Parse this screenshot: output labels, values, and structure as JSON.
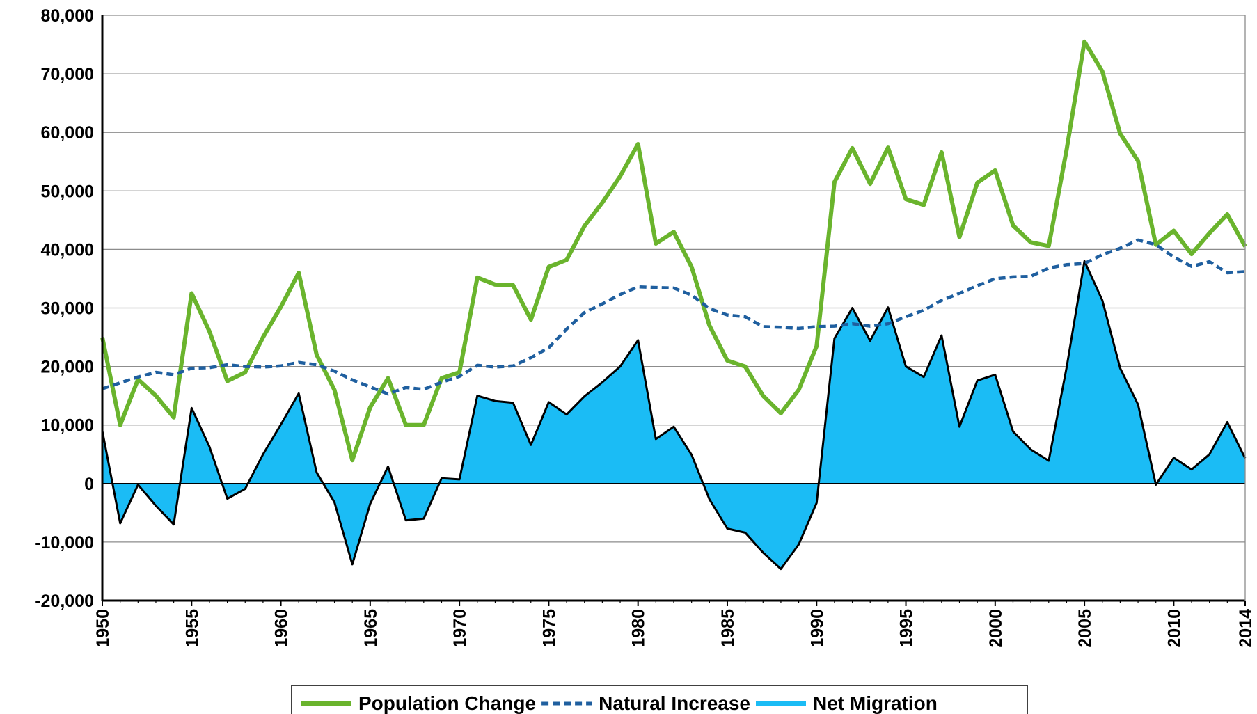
{
  "chart_data": {
    "type": "line",
    "x": [
      1950,
      1951,
      1952,
      1953,
      1954,
      1955,
      1956,
      1957,
      1958,
      1959,
      1960,
      1961,
      1962,
      1963,
      1964,
      1965,
      1966,
      1967,
      1968,
      1969,
      1970,
      1971,
      1972,
      1973,
      1974,
      1975,
      1976,
      1977,
      1978,
      1979,
      1980,
      1981,
      1982,
      1983,
      1984,
      1985,
      1986,
      1987,
      1988,
      1989,
      1990,
      1991,
      1992,
      1993,
      1994,
      1995,
      1996,
      1997,
      1998,
      1999,
      2000,
      2001,
      2002,
      2003,
      2004,
      2005,
      2006,
      2007,
      2008,
      2009,
      2010,
      2011,
      2012,
      2013,
      2014
    ],
    "xlim": [
      1950,
      2014
    ],
    "xticks": [
      1950,
      1955,
      1960,
      1965,
      1970,
      1975,
      1980,
      1985,
      1990,
      1995,
      2000,
      2005,
      2010,
      2014
    ],
    "ylim": [
      -20000,
      80000
    ],
    "yticks": [
      {
        "value": -20000,
        "label": "-20,000"
      },
      {
        "value": -10000,
        "label": "-10,000"
      },
      0,
      {
        "value": 10000,
        "label": "10,000"
      },
      {
        "value": 20000,
        "label": "20,000"
      },
      {
        "value": 30000,
        "label": "30,000"
      },
      {
        "value": 40000,
        "label": "40,000"
      },
      {
        "value": 50000,
        "label": "50,000"
      },
      {
        "value": 60000,
        "label": "60,000"
      },
      {
        "value": 70000,
        "label": "70,000"
      },
      {
        "value": 80000,
        "label": "80,000"
      }
    ],
    "grid": true,
    "legend": "bottom",
    "series": [
      {
        "name": "Population Change",
        "color": "#6ab42d",
        "style": "solid",
        "values": [
          25000,
          10000,
          17800,
          15000,
          11300,
          32500,
          26000,
          17500,
          19000,
          25000,
          30200,
          36000,
          22000,
          16000,
          4000,
          13000,
          18000,
          10000,
          10000,
          18000,
          19000,
          35200,
          34000,
          33900,
          28000,
          37000,
          38200,
          44000,
          48000,
          52500,
          58000,
          41000,
          43000,
          37000,
          27000,
          21000,
          20000,
          15000,
          12000,
          16000,
          23500,
          51500,
          57300,
          51200,
          57400,
          48600,
          47600,
          56600,
          42100,
          51400,
          53500,
          44100,
          41200,
          40600,
          57000,
          75500,
          70400,
          59800,
          55100,
          40800,
          43200,
          39200,
          42800,
          46000,
          40500
        ]
      },
      {
        "name": "Natural Increase",
        "color": "#1f5f9f",
        "style": "dashed",
        "values": [
          16200,
          17200,
          18200,
          19000,
          18600,
          19700,
          19800,
          20300,
          20000,
          19900,
          20100,
          20700,
          20300,
          19200,
          17700,
          16500,
          15300,
          16400,
          16100,
          17300,
          18300,
          20200,
          19900,
          20100,
          21500,
          23200,
          26400,
          29200,
          30700,
          32300,
          33600,
          33500,
          33400,
          32200,
          29900,
          28800,
          28500,
          26800,
          26700,
          26500,
          26800,
          26900,
          27300,
          26900,
          27300,
          28500,
          29600,
          31300,
          32500,
          33800,
          35000,
          35300,
          35400,
          36800,
          37400,
          37600,
          39100,
          40200,
          41600,
          40800,
          38700,
          37100,
          37900,
          36000,
          36200
        ]
      },
      {
        "name": "Net Migration",
        "color": "#1bbcf5",
        "style": "area",
        "values": [
          9000,
          -6800,
          -200,
          -3800,
          -7000,
          12900,
          6300,
          -2600,
          -900,
          5000,
          10100,
          15400,
          1900,
          -3200,
          -13800,
          -3500,
          2900,
          -6300,
          -6000,
          900,
          700,
          15000,
          14100,
          13800,
          6600,
          13900,
          11800,
          14900,
          17300,
          20000,
          24500,
          7600,
          9700,
          4900,
          -2700,
          -7700,
          -8400,
          -11800,
          -14600,
          -10400,
          -3300,
          24800,
          30000,
          24400,
          30100,
          20000,
          18200,
          25300,
          9700,
          17600,
          18600,
          8900,
          5800,
          3900,
          19800,
          38000,
          31300,
          19700,
          13500,
          -200,
          4400,
          2400,
          5000,
          10500,
          4300
        ]
      }
    ]
  }
}
